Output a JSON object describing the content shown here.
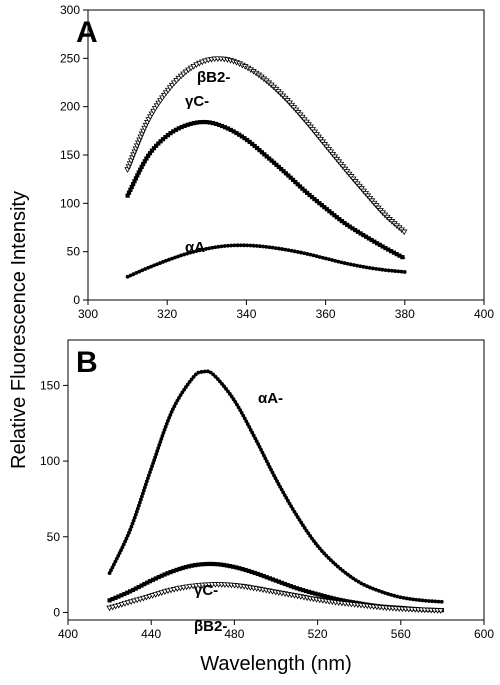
{
  "figure": {
    "ylabel": "Relative Fluorescence Intensity",
    "xlabel": "Wavelength (nm)"
  },
  "chart_data": [
    {
      "type": "line",
      "panel": "A",
      "xlim": [
        300,
        400
      ],
      "ylim": [
        0,
        300
      ],
      "x_ticks": [
        "300",
        "320",
        "340",
        "360",
        "380",
        "400"
      ],
      "y_ticks": [
        "0",
        "50",
        "100",
        "150",
        "200",
        "250",
        "300"
      ],
      "grid": false,
      "series": [
        {
          "name": "βB2-",
          "marker": "open-triangle",
          "color": "#000000",
          "x": [
            310,
            315,
            320,
            325,
            330,
            335,
            340,
            345,
            350,
            355,
            360,
            365,
            370,
            375,
            380
          ],
          "y": [
            135,
            184,
            216,
            237,
            248,
            249,
            241,
            227,
            208,
            185,
            160,
            135,
            111,
            88,
            70
          ]
        },
        {
          "name": "γC-",
          "marker": "filled-square",
          "color": "#000000",
          "x": [
            310,
            315,
            320,
            325,
            330,
            335,
            340,
            345,
            350,
            355,
            360,
            365,
            370,
            375,
            380
          ],
          "y": [
            108,
            148,
            170,
            181,
            184,
            178,
            166,
            149,
            131,
            112,
            95,
            79,
            66,
            54,
            43
          ]
        },
        {
          "name": "αA-",
          "marker": "filled-circle",
          "color": "#000000",
          "x": [
            310,
            315,
            320,
            325,
            330,
            335,
            340,
            345,
            350,
            355,
            360,
            365,
            370,
            375,
            380
          ],
          "y": [
            24,
            33,
            41,
            48,
            53,
            56,
            56.5,
            55,
            52,
            48,
            43,
            38,
            34,
            31,
            29
          ]
        }
      ],
      "annotations": [
        {
          "text": "βB2-",
          "x": 334,
          "y": 248
        },
        {
          "text": "γC-",
          "x": 324,
          "y": 192
        },
        {
          "text": "αA-",
          "x": 331,
          "y": 65
        }
      ]
    },
    {
      "type": "line",
      "panel": "B",
      "xlim": [
        400,
        600
      ],
      "ylim": [
        -5,
        180
      ],
      "x_ticks": [
        "400",
        "440",
        "480",
        "520",
        "560",
        "600"
      ],
      "y_ticks": [
        "0",
        "50",
        "100",
        "150"
      ],
      "grid": false,
      "series": [
        {
          "name": "αA-",
          "marker": "filled-circle",
          "color": "#000000",
          "x": [
            420,
            430,
            440,
            450,
            460,
            465,
            470,
            480,
            490,
            500,
            510,
            520,
            530,
            540,
            550,
            560,
            570,
            580
          ],
          "y": [
            26,
            55,
            95,
            133,
            155,
            159,
            157,
            140,
            115,
            88,
            64,
            44,
            30,
            20,
            14,
            10,
            8,
            7
          ]
        },
        {
          "name": "γC-",
          "marker": "filled-square",
          "color": "#000000",
          "x": [
            420,
            430,
            440,
            450,
            460,
            470,
            480,
            490,
            500,
            510,
            520,
            530,
            540,
            550,
            560,
            570,
            580
          ],
          "y": [
            8,
            14,
            21,
            27,
            31,
            32,
            30,
            26,
            21,
            16,
            12,
            8.5,
            6,
            4,
            3,
            2,
            1.5
          ]
        },
        {
          "name": "βB2-",
          "marker": "open-triangle",
          "color": "#000000",
          "x": [
            420,
            430,
            440,
            450,
            460,
            470,
            480,
            490,
            500,
            510,
            520,
            530,
            540,
            550,
            560,
            570,
            580
          ],
          "y": [
            3,
            7,
            11,
            15,
            17.5,
            18.5,
            18,
            16,
            13.5,
            11,
            8.5,
            6.5,
            5,
            3.5,
            2.5,
            1.8,
            1.2
          ]
        }
      ],
      "annotations": [
        {
          "text": "αA-",
          "x": 489,
          "y": 140
        },
        {
          "text": "γC-",
          "x": 456,
          "y": 40
        },
        {
          "text": "βB2-",
          "x": 456,
          "y": -6
        }
      ]
    }
  ]
}
